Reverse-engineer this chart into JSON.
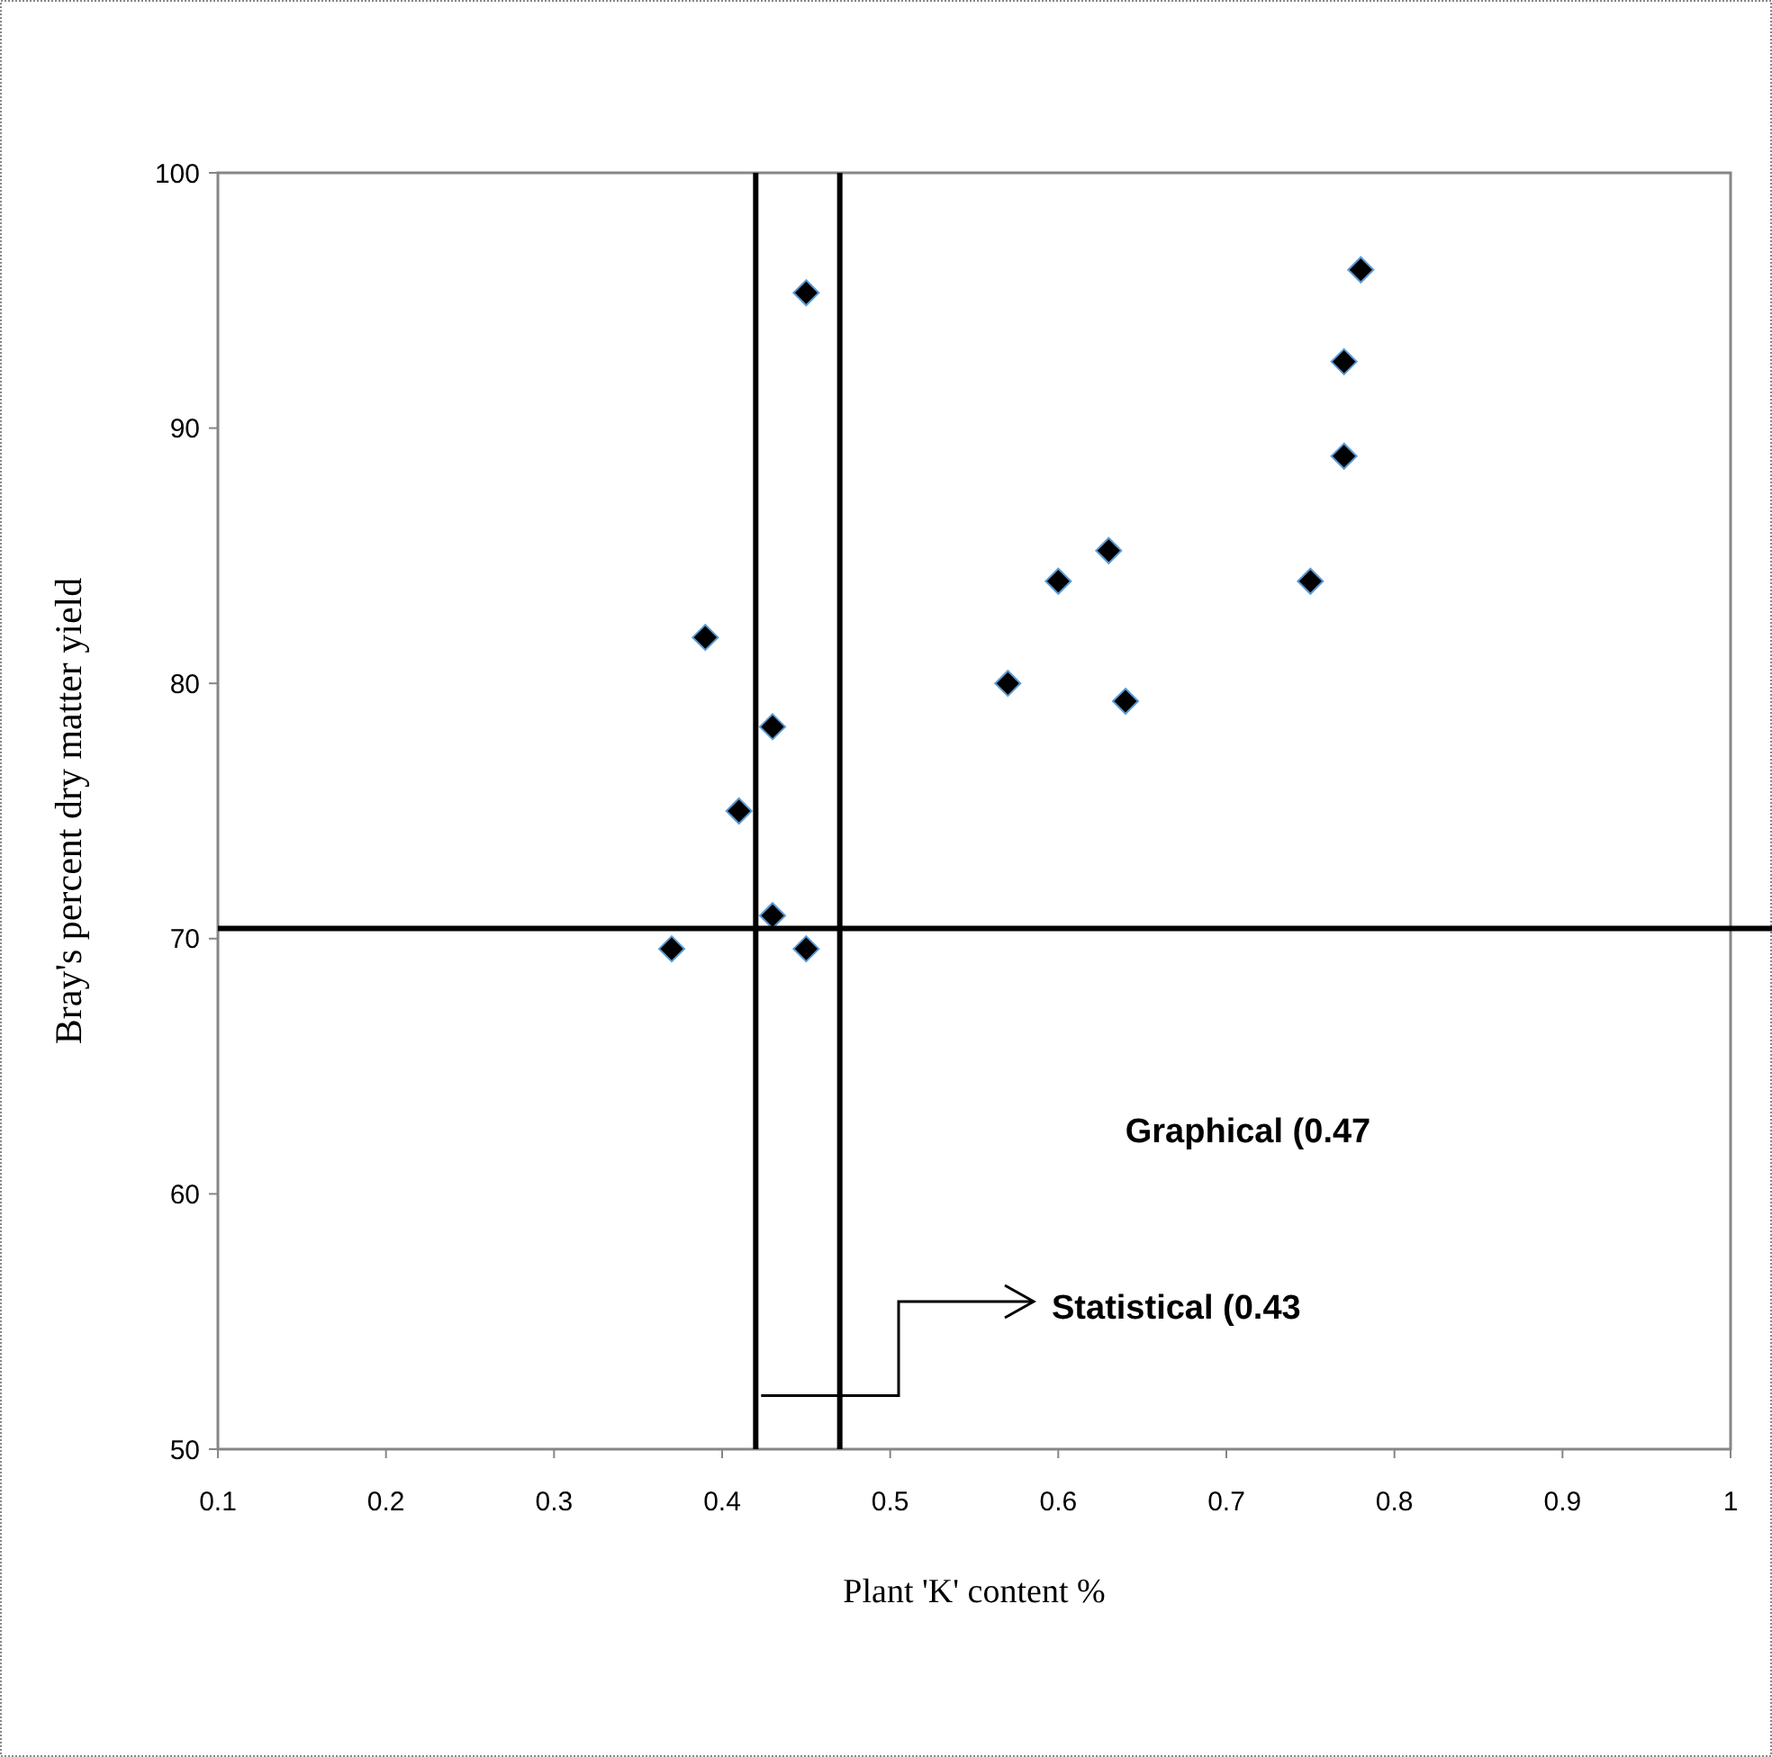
{
  "chart_data": {
    "type": "scatter",
    "xlabel": "Plant 'K' content  %",
    "ylabel": "Bray's percent dry matter  yield",
    "xlim": [
      0.1,
      1
    ],
    "xticks": [
      0.1,
      0.2,
      0.3,
      0.4,
      0.5,
      0.6,
      0.7,
      0.8,
      0.9,
      1
    ],
    "ylim": [
      50,
      100
    ],
    "yticks": [
      50,
      60,
      70,
      80,
      90,
      100
    ],
    "grid": false,
    "marker": "diamond",
    "series": [
      {
        "color": "#000000",
        "x": [
          0.37,
          0.39,
          0.41,
          0.43,
          0.43,
          0.45,
          0.45,
          0.57,
          0.6,
          0.63,
          0.64,
          0.75,
          0.77,
          0.77,
          0.78
        ],
        "values": [
          69.6,
          81.8,
          75.0,
          78.3,
          70.9,
          69.6,
          95.3,
          80.0,
          84.0,
          85.2,
          79.3,
          84.0,
          88.9,
          92.6,
          96.2
        ]
      }
    ],
    "ref_lines": [
      {
        "axis": "x",
        "value": 0.42,
        "color": "#000000"
      },
      {
        "axis": "x",
        "value": 0.47,
        "color": "#000000"
      },
      {
        "axis": "y",
        "value": 70.4,
        "color": "#000000"
      }
    ],
    "annotations": [
      "Graphical (0.47",
      {
        "text": "Statistical (0.43",
        "x": 0.42,
        "y": 52.1
      }
    ]
  }
}
